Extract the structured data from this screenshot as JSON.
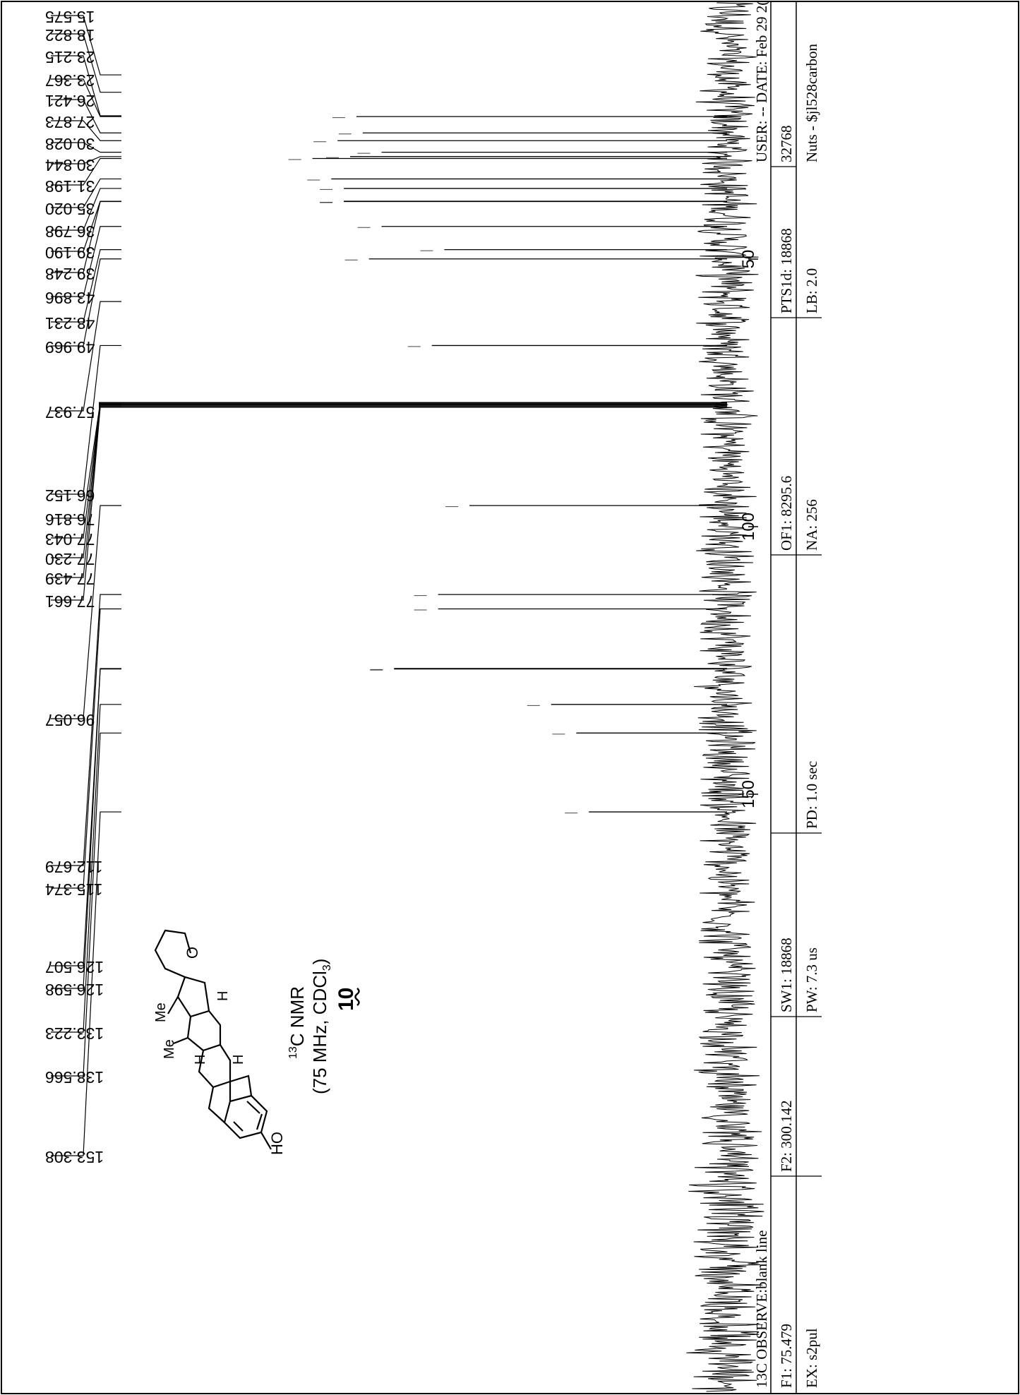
{
  "chart_data": {
    "type": "line",
    "title": "",
    "xlabel": "",
    "ylabel": "",
    "x_reversed": true,
    "xlim": [
      0,
      200
    ],
    "x_ticks": [
      50,
      100,
      150
    ],
    "peaks": [
      {
        "ppm": 15.575,
        "label": "15.575",
        "intensity": 0.0
      },
      {
        "ppm": 18.822,
        "label": "18.822",
        "intensity": 0.0
      },
      {
        "ppm": 23.215,
        "label": "23.215",
        "intensity": 0.0
      },
      {
        "ppm": 23.367,
        "label": "23.367",
        "intensity": 0.59
      },
      {
        "ppm": 26.421,
        "label": "26.421",
        "intensity": 0.58
      },
      {
        "ppm": 27.873,
        "label": "27.873",
        "intensity": 0.62
      },
      {
        "ppm": 30.028,
        "label": "30.028",
        "intensity": 0.55
      },
      {
        "ppm": 30.844,
        "label": "30.844",
        "intensity": 0.6
      },
      {
        "ppm": 31.198,
        "label": "31.198",
        "intensity": 0.66
      },
      {
        "ppm": 35.02,
        "label": "35.020",
        "intensity": 0.63
      },
      {
        "ppm": 36.798,
        "label": "36.798",
        "intensity": 0.61
      },
      {
        "ppm": 39.19,
        "label": "39.190",
        "intensity": 0.61
      },
      {
        "ppm": 39.248,
        "label": "39.248",
        "intensity": 0.61
      },
      {
        "ppm": 43.896,
        "label": "43.896",
        "intensity": 0.55
      },
      {
        "ppm": 48.231,
        "label": "48.231",
        "intensity": 0.45
      },
      {
        "ppm": 49.969,
        "label": "49.969",
        "intensity": 0.57
      },
      {
        "ppm": 57.937,
        "label": "57.937",
        "intensity": 0.0
      },
      {
        "ppm": 66.152,
        "label": "66.152",
        "intensity": 0.47
      },
      {
        "ppm": 76.816,
        "label": "76.816",
        "intensity": 1.0
      },
      {
        "ppm": 77.043,
        "label": "77.043",
        "intensity": 1.0
      },
      {
        "ppm": 77.23,
        "label": "77.230",
        "intensity": 1.0
      },
      {
        "ppm": 77.439,
        "label": "77.439",
        "intensity": 1.0
      },
      {
        "ppm": 77.661,
        "label": "77.661",
        "intensity": 1.0
      },
      {
        "ppm": 96.057,
        "label": "96.057",
        "intensity": 0.41
      },
      {
        "ppm": 112.679,
        "label": "112.679",
        "intensity": 0.46
      },
      {
        "ppm": 115.374,
        "label": "115.374",
        "intensity": 0.46
      },
      {
        "ppm": 126.507,
        "label": "126.507",
        "intensity": 0.53
      },
      {
        "ppm": 126.598,
        "label": "126.598",
        "intensity": 0.53
      },
      {
        "ppm": 133.223,
        "label": "133.223",
        "intensity": 0.28
      },
      {
        "ppm": 138.566,
        "label": "138.566",
        "intensity": 0.24
      },
      {
        "ppm": 153.308,
        "label": "153.308",
        "intensity": 0.22
      }
    ],
    "annotation": {
      "nmr_title": "NMR",
      "nmr_isotope": "13",
      "nmr_element": "C",
      "nmr_conditions_prefix": "(75 MHz, CDCl",
      "nmr_conditions_sub": "3",
      "nmr_conditions_suffix": ")",
      "compound_number": "10"
    },
    "structure_labels": {
      "ho": "HO",
      "me1": "Me",
      "me2": "Me",
      "o": "O",
      "h1": "H",
      "h2": "H",
      "h3": "H"
    }
  },
  "info_panel": {
    "row1_title": "13C OBSERVE:blank line",
    "row1_user": "USER:  -- DATE: Feb 29 2(",
    "row2": {
      "f1": "F1: 75.479",
      "f2": "F2: 300.142",
      "sw1": "SW1: 18868",
      "of1": "OF1: 8295.6",
      "pts": "PTS1d: 18868",
      "pts_val": "32768"
    },
    "row3": {
      "ex": "EX: s2pul",
      "pw": "PW: 7.3  us",
      "pd": "PD: 1.0  sec",
      "na": "NA: 256",
      "lb": "LB: 2.0",
      "nuts": "Nuts - $jl528carbon"
    }
  }
}
